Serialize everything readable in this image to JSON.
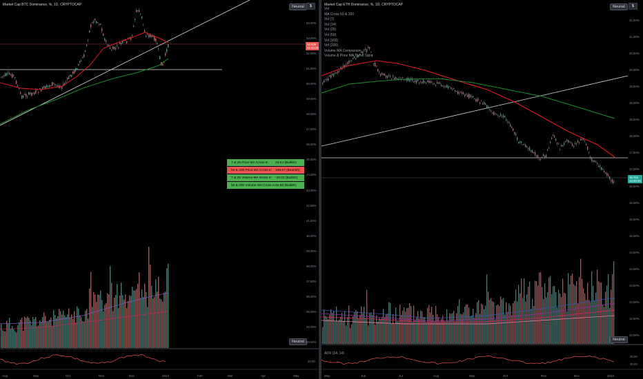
{
  "left": {
    "title": "Market Cap BTC Dominance, %, 1D, CRYPTOCAP",
    "currency_button": "$",
    "neutral_label_top": "Neutral",
    "neutral_label_bottom": "Neutral",
    "price_tag_value": "52.538",
    "price_tag_time": "02:53:28",
    "price_axis": [
      "54.00%",
      "53.00%",
      "52.00%",
      "51.00%",
      "50.00%",
      "49.00%",
      "48.00%",
      "47.00%",
      "46.00%",
      "45.00%",
      "44.00%",
      "43.00%",
      "42.00%",
      "41.00%",
      "40.00%",
      "39.00%",
      "38.00%",
      "37.00%",
      "36.00%",
      "35.00%",
      "34.00%",
      "33.00%"
    ],
    "osc_axis": [
      "20.00"
    ],
    "time_axis": [
      "Aug",
      "Sep",
      "Oct",
      "Nov",
      "Dec",
      "2024",
      "Feb",
      "Mar",
      "Apr",
      "May"
    ],
    "signals": [
      {
        "name": "7 & 25 Price MA Cross In",
        "value": "23.64 (Bullish)",
        "state": "bull"
      },
      {
        "name": "50 & 200 Price MA Cross In",
        "value": "106.87 (Bearish)",
        "state": "bear"
      },
      {
        "name": "7 & 25 Volume MA Cross In",
        "value": "-20.02 (Bullish)",
        "state": "bull"
      },
      {
        "name": "50 & 200 Volume MA Cross In",
        "value": "45.68 (Bullish)",
        "state": "bull"
      }
    ],
    "colors": {
      "up": "#26a69a",
      "down": "#ef5350",
      "ma_fast": "#e31b23",
      "ma_slow": "#1b8a2e"
    }
  },
  "right": {
    "title": "Market Cap ETH Dominance, %, 1D, CRYPTOCAP",
    "currency_button": "$",
    "neutral_label_top": "Neutral",
    "neutral_label_bottom": "Neutral",
    "legend": [
      "Vol",
      "MA Cross 50 & 200",
      "Vol (7)",
      "Vol (14)",
      "Vol (25)",
      "Vol (50)",
      "Vol (100)",
      "Vol (200)",
      "Volume MA Comparison",
      "Volume & Price MA Trend Table"
    ],
    "price_tag_value": "16.741",
    "price_tag_time": "13:46:29",
    "price_axis": [
      "21.50%",
      "21.00%",
      "20.50%",
      "20.00%",
      "19.50%",
      "19.00%",
      "18.50%",
      "18.00%",
      "17.50%",
      "17.00%",
      "16.50%",
      "16.00%",
      "15.50%",
      "15.00%",
      "14.50%",
      "14.00%",
      "13.50%",
      "13.00%",
      "12.50%",
      "12.00%"
    ],
    "osc_label": "ADX (14, 14)",
    "osc_axis": [
      "30.00",
      "20.00"
    ],
    "time_axis": [
      "Jun",
      "Jul",
      "Aug",
      "Sep",
      "Oct",
      "Nov",
      "Dec",
      "2024"
    ],
    "first_time_label": "May"
  }
}
